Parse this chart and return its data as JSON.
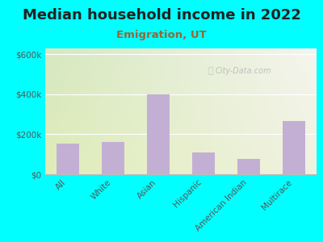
{
  "title": "Median household income in 2022",
  "subtitle": "Emigration, UT",
  "categories": [
    "All",
    "White",
    "Asian",
    "Hispanic",
    "American Indian",
    "Multirace"
  ],
  "values": [
    155000,
    160000,
    400000,
    110000,
    75000,
    265000
  ],
  "bar_color": "#c4afd4",
  "background_outer": "#00FFFF",
  "background_plot_topleft": "#d6e8c0",
  "background_plot_topright": "#f5f5ee",
  "background_plot_bottom": "#e8f0c8",
  "title_fontsize": 13,
  "subtitle_fontsize": 9.5,
  "subtitle_color": "#996633",
  "ylabel_ticks": [
    "$0",
    "$200k",
    "$400k",
    "$600k"
  ],
  "ytick_values": [
    0,
    200000,
    400000,
    600000
  ],
  "ylim": [
    0,
    630000
  ],
  "watermark": "City-Data.com",
  "tick_color": "#555555"
}
